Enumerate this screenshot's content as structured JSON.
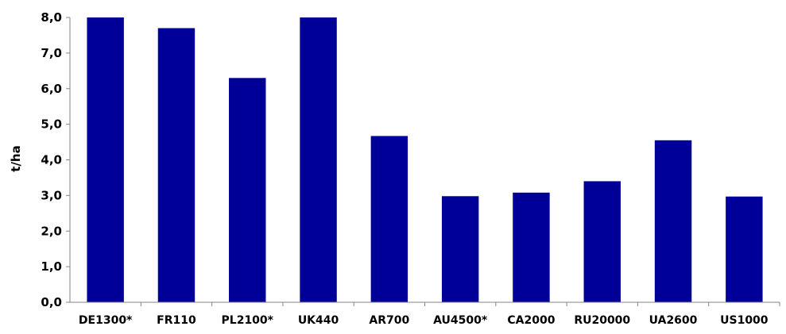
{
  "chart_data": {
    "type": "bar",
    "title": "",
    "xlabel": "",
    "ylabel": "t/ha",
    "ylim": [
      0,
      8
    ],
    "yticks": [
      "0,0",
      "1,0",
      "2,0",
      "3,0",
      "4,0",
      "5,0",
      "6,0",
      "7,0",
      "8,0"
    ],
    "grid": false,
    "legend": "none",
    "bar_color": "#000099",
    "categories": [
      "DE1300*",
      "FR110",
      "PL2100*",
      "UK440",
      "AR700",
      "AU4500*",
      "CA2000",
      "RU20000",
      "UA2600",
      "US1000"
    ],
    "values": [
      8.0,
      7.7,
      6.3,
      8.0,
      4.67,
      2.98,
      3.08,
      3.4,
      4.55,
      2.97
    ]
  }
}
